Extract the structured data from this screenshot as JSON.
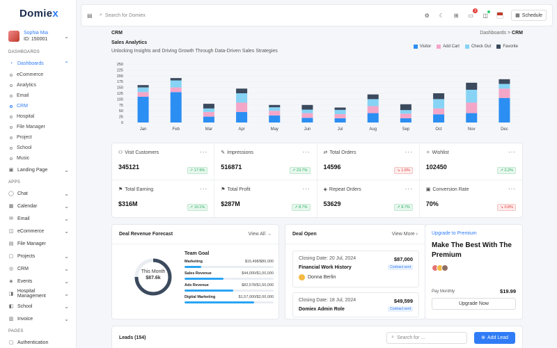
{
  "brand": {
    "name_part1": "Domie",
    "name_part2": "x"
  },
  "profile": {
    "name": "Sophia Mia",
    "id": "ID: 150001"
  },
  "sidebar": {
    "section_dashboards": "DASHBOARDS",
    "dashboards_label": "Dashboards",
    "dashboard_items": [
      "eCommerce",
      "Analytics",
      "Email",
      "CRM",
      "Hospital",
      "File Manager",
      "Project",
      "School",
      "Music"
    ],
    "landing_page": "Landing Page",
    "section_apps": "APPS",
    "apps": [
      "Chat",
      "Calendar",
      "Email",
      "eCommerce",
      "File Manager",
      "Projects",
      "CRM",
      "Events",
      "Hospital Management",
      "School",
      "Invoice"
    ],
    "section_pages": "PAGES",
    "pages_first": "Authentication"
  },
  "topbar": {
    "search_placeholder": "Search for Domiex",
    "notification_count": "3",
    "schedule_label": "Schedule"
  },
  "header": {
    "page_title": "CRM",
    "breadcrumb_parent": "Dashboards",
    "breadcrumb_sep": ">",
    "breadcrumb_current": "CRM"
  },
  "sales_analytics": {
    "title": "Sales Analytics",
    "subtitle": "Unlocking Insights and Driving Growth Through Data-Driven Sales Strategies"
  },
  "colors": {
    "visitor": "#2b8ef3",
    "add_cart": "#f4a6c8",
    "check_out": "#86d3f5",
    "favorite": "#3c4a5e",
    "accent": "#2f7cf6"
  },
  "chart_data": {
    "type": "bar",
    "stacked": true,
    "categories": [
      "Jan",
      "Feb",
      "Mar",
      "Apr",
      "May",
      "Jun",
      "Jul",
      "Aug",
      "Sep",
      "Oct",
      "Nov",
      "Dec"
    ],
    "series": [
      {
        "name": "Visitor",
        "values": [
          110,
          130,
          25,
          45,
          30,
          20,
          18,
          40,
          18,
          35,
          40,
          105
        ]
      },
      {
        "name": "Add Cart",
        "values": [
          20,
          20,
          20,
          40,
          20,
          20,
          18,
          30,
          20,
          25,
          45,
          40
        ]
      },
      {
        "name": "Check Out",
        "values": [
          20,
          30,
          15,
          40,
          15,
          15,
          18,
          30,
          15,
          40,
          55,
          20
        ]
      },
      {
        "name": "Favorite",
        "values": [
          10,
          10,
          20,
          20,
          10,
          20,
          10,
          20,
          25,
          25,
          30,
          20
        ]
      }
    ],
    "ylim": [
      0,
      250
    ],
    "yticks": [
      0,
      25,
      50,
      75,
      100,
      125,
      150,
      175,
      200,
      225,
      250
    ],
    "legend_position": "top-right",
    "grid": true
  },
  "stats": [
    {
      "label": "Visit Customers",
      "value": "345121",
      "change": "17.9%",
      "dir": "up"
    },
    {
      "label": "Impressions",
      "value": "516871",
      "change": "23.7%",
      "dir": "up"
    },
    {
      "label": "Total Orders",
      "value": "14596",
      "change": "1.6%",
      "dir": "down"
    },
    {
      "label": "Wishlist",
      "value": "102450",
      "change": "2.2%",
      "dir": "up"
    },
    {
      "label": "Total Earning",
      "value": "$316M",
      "change": "10.1%",
      "dir": "up"
    },
    {
      "label": "Total Profit",
      "value": "$287M",
      "change": "8.7%",
      "dir": "up"
    },
    {
      "label": "Repeat Orders",
      "value": "53629",
      "change": "8.7%",
      "dir": "up"
    },
    {
      "label": "Conversion Rate",
      "value": "70%",
      "change": "0.8%",
      "dir": "down"
    }
  ],
  "forecast": {
    "title": "Deal Revenue Forecast",
    "view_all": "View All",
    "ring_label": "This Month",
    "ring_value": "$87.6k",
    "ring_fraction": 0.75,
    "team_goal": "Team Goal",
    "goals": [
      {
        "label": "Marketing",
        "value": "$15,498/$80,000",
        "progress": 0.19
      },
      {
        "label": "Sales Revenue",
        "value": "$44,000/$1,00,000",
        "progress": 0.44
      },
      {
        "label": "Ads Revenue",
        "value": "$82,578/$1,50,000",
        "progress": 0.55
      },
      {
        "label": "Digital Marketing",
        "value": "$1,57,000/$2,00,000",
        "progress": 0.785
      }
    ]
  },
  "deal_open": {
    "title": "Deal Open",
    "view_more": "View More",
    "items": [
      {
        "date": "Closing Date: 20 Jul, 2024",
        "name": "Financial Work History",
        "amount": "$87,000",
        "status": "Contract sent",
        "person": "Donna Berlin"
      },
      {
        "date": "Closing Date: 18 Jul, 2024",
        "name": "Domiex Admin Role",
        "amount": "$49,599",
        "status": "Contract sent"
      }
    ]
  },
  "premium": {
    "tag": "Upgrade to Premium",
    "heading": "Make The Best With The Premium",
    "pay_label": "Pay Monthly",
    "pay_price": "$19.99",
    "button": "Upgrade Now"
  },
  "leads": {
    "title": "Leads (154)",
    "search_placeholder": "Search for ...",
    "add_button": "Add Lead"
  }
}
